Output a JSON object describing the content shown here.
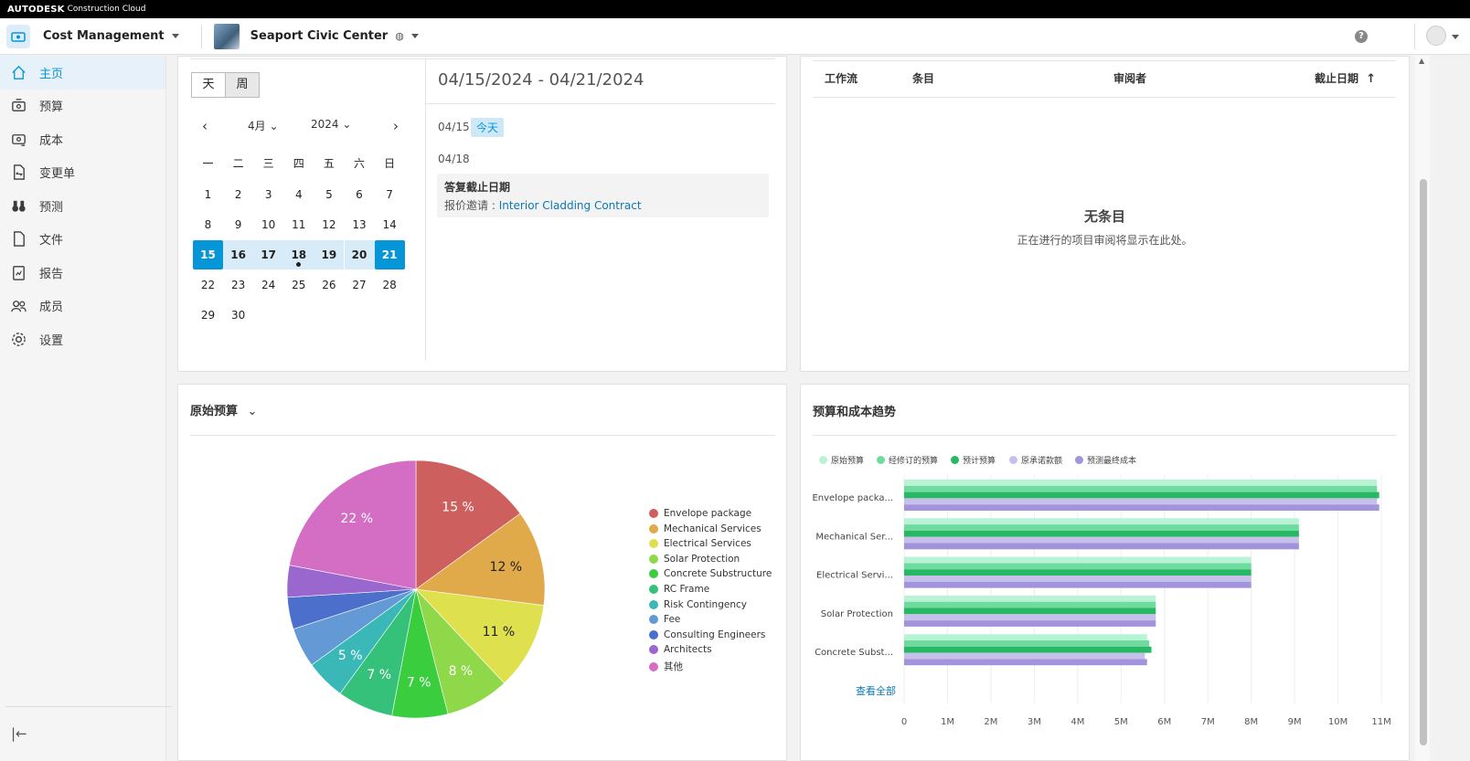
{
  "topbar": {
    "brand": "AUTODESK",
    "product": "Construction Cloud"
  },
  "header": {
    "product": "Cost Management",
    "project": "Seaport Civic Center",
    "help": "?"
  },
  "sidebar": {
    "items": [
      {
        "label": "主页",
        "icon": "home-icon",
        "active": true
      },
      {
        "label": "预算",
        "icon": "budget-icon",
        "active": false
      },
      {
        "label": "成本",
        "icon": "cost-icon",
        "active": false
      },
      {
        "label": "变更单",
        "icon": "change-order-icon",
        "active": false
      },
      {
        "label": "预测",
        "icon": "binoculars-icon",
        "active": false
      },
      {
        "label": "文件",
        "icon": "file-icon",
        "active": false
      },
      {
        "label": "报告",
        "icon": "report-icon",
        "active": false
      },
      {
        "label": "成员",
        "icon": "members-icon",
        "active": false
      },
      {
        "label": "设置",
        "icon": "gear-icon",
        "active": false
      }
    ],
    "collapse": "|←"
  },
  "calendar": {
    "day_btn": "天",
    "week_btn": "周",
    "month": "4月",
    "year": "2024",
    "weekdays": [
      "一",
      "二",
      "三",
      "四",
      "五",
      "六",
      "日"
    ],
    "weeks": [
      [
        "1",
        "2",
        "3",
        "4",
        "5",
        "6",
        "7"
      ],
      [
        "8",
        "9",
        "10",
        "11",
        "12",
        "13",
        "14"
      ],
      [
        "15",
        "16",
        "17",
        "18",
        "19",
        "20",
        "21"
      ],
      [
        "22",
        "23",
        "24",
        "25",
        "26",
        "27",
        "28"
      ],
      [
        "29",
        "30",
        "",
        "",
        "",
        "",
        ""
      ]
    ]
  },
  "agenda": {
    "range": "04/15/2024 - 04/21/2024",
    "day1": "04/15",
    "today": "今天",
    "day2": "04/18",
    "event_title": "答复截止日期",
    "event_prefix": "报价邀请 : ",
    "event_link": "Interior Cladding Contract"
  },
  "reviews": {
    "cols": [
      "工作流",
      "条目",
      "审阅者",
      "截止日期"
    ],
    "empty_title": "无条目",
    "empty_sub": "正在进行的项目审阅将显示在此处。"
  },
  "pie_card": {
    "title": "原始预算"
  },
  "bar_card": {
    "title": "预算和成本趋势",
    "see_all": "查看全部"
  },
  "chart_data": [
    {
      "type": "pie",
      "title": "原始预算",
      "slices": [
        {
          "label": "Envelope package",
          "value": 15,
          "color": "#cd605f"
        },
        {
          "label": "Mechanical Services",
          "value": 12,
          "color": "#e0a94a"
        },
        {
          "label": "Electrical Services",
          "value": 11,
          "color": "#dfe04e"
        },
        {
          "label": "Solar Protection",
          "value": 8,
          "color": "#8fd84a"
        },
        {
          "label": "Concrete Substructure",
          "value": 7,
          "color": "#3acd3e"
        },
        {
          "label": "RC Frame",
          "value": 7,
          "color": "#36c17a"
        },
        {
          "label": "Risk Contingency",
          "value": 5,
          "color": "#3ab8b8"
        },
        {
          "label": "Fee",
          "value": 5,
          "color": "#6399d4"
        },
        {
          "label": "Consulting Engineers",
          "value": 4,
          "color": "#4b6fcb"
        },
        {
          "label": "Architects",
          "value": 4,
          "color": "#9a67cf"
        },
        {
          "label": "其他",
          "value": 22,
          "color": "#d36ec4"
        }
      ],
      "labels_shown": [
        "15 %",
        "12 %",
        "11 %",
        "8 %",
        "7 %",
        "7 %",
        "5 %",
        "",
        "",
        "",
        "22 %"
      ],
      "legend": "right"
    },
    {
      "type": "bar",
      "orientation": "horizontal",
      "title": "预算和成本趋势",
      "categories": [
        "Envelope packa...",
        "Mechanical Ser...",
        "Electrical Servi...",
        "Solar Protection",
        "Concrete Subst..."
      ],
      "series": [
        {
          "name": "原始预算",
          "color": "#b9f3d5",
          "values": [
            10.9,
            9.1,
            8.0,
            5.8,
            5.6
          ]
        },
        {
          "name": "经修订的预算",
          "color": "#6fdb9e",
          "values": [
            10.9,
            9.1,
            8.0,
            5.8,
            5.65
          ]
        },
        {
          "name": "预计预算",
          "color": "#27b865",
          "values": [
            10.95,
            9.1,
            8.0,
            5.8,
            5.7
          ]
        },
        {
          "name": "原承诺款额",
          "color": "#c7c0ea",
          "values": [
            10.9,
            9.1,
            8.0,
            5.8,
            5.55
          ]
        },
        {
          "name": "预测最终成本",
          "color": "#a293dc",
          "values": [
            10.95,
            9.1,
            8.0,
            5.8,
            5.6
          ]
        }
      ],
      "xticks": [
        "0",
        "1M",
        "2M",
        "3M",
        "4M",
        "5M",
        "6M",
        "7M",
        "8M",
        "9M",
        "10M",
        "11M"
      ],
      "xlim": [
        0,
        11.3
      ],
      "legend": "top"
    }
  ]
}
